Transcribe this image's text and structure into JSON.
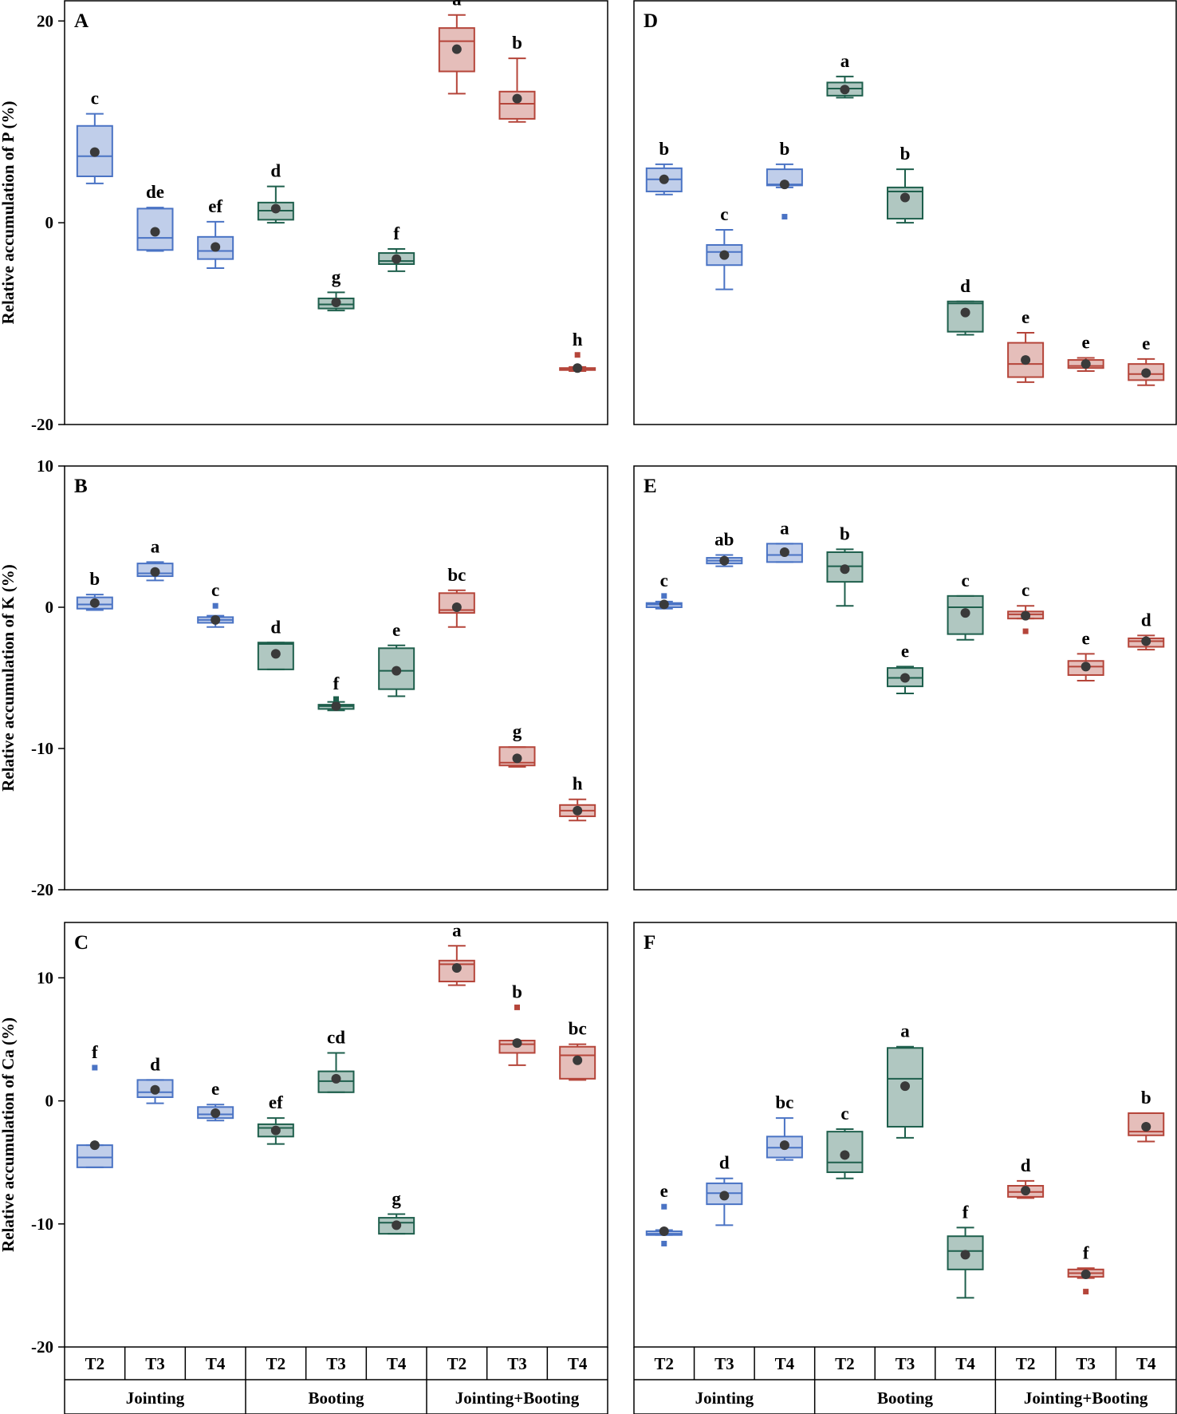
{
  "figure": {
    "colors": {
      "Jointing": "#4a73c4",
      "Booting": "#1e5f4c",
      "Jointing+Booting": "#b5453a",
      "mean": "#3a3a3a"
    },
    "group_labels": [
      "Jointing",
      "Booting",
      "Jointing+Booting"
    ],
    "treatment_labels": [
      "T2",
      "T3",
      "T4"
    ]
  },
  "chart_data": [
    {
      "type": "boxplot",
      "panel": "A",
      "ylabel": "Relative accumulation of P (%)",
      "ylim": [
        -20,
        22
      ],
      "yticks": [
        -20,
        0,
        20
      ],
      "boxes": [
        {
          "group": "Jointing",
          "treatment": "T2",
          "min": 3.9,
          "q1": 4.6,
          "median": 6.6,
          "q3": 9.6,
          "max": 10.8,
          "mean": 7.0,
          "outliers": [],
          "letter": "c"
        },
        {
          "group": "Jointing",
          "treatment": "T3",
          "min": -2.8,
          "q1": -2.7,
          "median": -1.5,
          "q3": 1.4,
          "max": 1.5,
          "mean": -0.9,
          "outliers": [],
          "letter": "de"
        },
        {
          "group": "Jointing",
          "treatment": "T4",
          "min": -4.5,
          "q1": -3.6,
          "median": -2.8,
          "q3": -1.4,
          "max": 0.1,
          "mean": -2.4,
          "outliers": [],
          "letter": "ef"
        },
        {
          "group": "Booting",
          "treatment": "T2",
          "min": 0.0,
          "q1": 0.3,
          "median": 1.2,
          "q3": 2.0,
          "max": 3.6,
          "mean": 1.4,
          "outliers": [],
          "letter": "d"
        },
        {
          "group": "Booting",
          "treatment": "T3",
          "min": -8.7,
          "q1": -8.5,
          "median": -8.1,
          "q3": -7.5,
          "max": -6.9,
          "mean": -7.9,
          "outliers": [],
          "letter": "g"
        },
        {
          "group": "Booting",
          "treatment": "T4",
          "min": -4.8,
          "q1": -4.1,
          "median": -3.8,
          "q3": -3.0,
          "max": -2.6,
          "mean": -3.6,
          "outliers": [],
          "letter": "f"
        },
        {
          "group": "Jointing+Booting",
          "treatment": "T2",
          "min": 12.8,
          "q1": 15.0,
          "median": 18.0,
          "q3": 19.3,
          "max": 20.6,
          "mean": 17.2,
          "outliers": [],
          "letter": "a"
        },
        {
          "group": "Jointing+Booting",
          "treatment": "T3",
          "min": 10.0,
          "q1": 10.3,
          "median": 11.8,
          "q3": 13.0,
          "max": 16.3,
          "mean": 12.3,
          "outliers": [],
          "letter": "b"
        },
        {
          "group": "Jointing+Booting",
          "treatment": "T4",
          "min": -14.7,
          "q1": -14.6,
          "median": -14.5,
          "q3": -14.4,
          "max": -14.3,
          "mean": -14.4,
          "outliers": [
            -13.1
          ],
          "letter": "h"
        }
      ]
    },
    {
      "type": "boxplot",
      "panel": "B",
      "ylabel": "Relative accumulation of K (%)",
      "ylim": [
        -20,
        10
      ],
      "yticks": [
        -20,
        -10,
        0,
        10
      ],
      "boxes": [
        {
          "group": "Jointing",
          "treatment": "T2",
          "min": -0.2,
          "q1": -0.1,
          "median": 0.2,
          "q3": 0.7,
          "max": 0.9,
          "mean": 0.3,
          "outliers": [],
          "letter": "b"
        },
        {
          "group": "Jointing",
          "treatment": "T3",
          "min": 1.9,
          "q1": 2.2,
          "median": 2.4,
          "q3": 3.1,
          "max": 3.2,
          "mean": 2.5,
          "outliers": [],
          "letter": "a"
        },
        {
          "group": "Jointing",
          "treatment": "T4",
          "min": -1.4,
          "q1": -1.1,
          "median": -0.9,
          "q3": -0.7,
          "max": -0.6,
          "mean": -0.9,
          "outliers": [
            0.1
          ],
          "letter": "c"
        },
        {
          "group": "Booting",
          "treatment": "T2",
          "min": -4.4,
          "q1": -4.4,
          "median": -2.6,
          "q3": -2.5,
          "max": -2.5,
          "mean": -3.3,
          "outliers": [],
          "letter": "d"
        },
        {
          "group": "Booting",
          "treatment": "T3",
          "min": -7.3,
          "q1": -7.2,
          "median": -7.0,
          "q3": -6.9,
          "max": -6.7,
          "mean": -7.0,
          "outliers": [
            -6.5
          ],
          "letter": "f"
        },
        {
          "group": "Booting",
          "treatment": "T4",
          "min": -6.3,
          "q1": -5.8,
          "median": -4.5,
          "q3": -2.9,
          "max": -2.7,
          "mean": -4.5,
          "outliers": [],
          "letter": "e"
        },
        {
          "group": "Jointing+Booting",
          "treatment": "T2",
          "min": -1.4,
          "q1": -0.4,
          "median": -0.2,
          "q3": 1.0,
          "max": 1.2,
          "mean": 0.0,
          "outliers": [],
          "letter": "bc"
        },
        {
          "group": "Jointing+Booting",
          "treatment": "T3",
          "min": -11.3,
          "q1": -11.2,
          "median": -11.0,
          "q3": -9.9,
          "max": -9.9,
          "mean": -10.7,
          "outliers": [],
          "letter": "g"
        },
        {
          "group": "Jointing+Booting",
          "treatment": "T4",
          "min": -15.1,
          "q1": -14.8,
          "median": -14.4,
          "q3": -14.0,
          "max": -13.6,
          "mean": -14.4,
          "outliers": [],
          "letter": "h"
        }
      ]
    },
    {
      "type": "boxplot",
      "panel": "C",
      "ylabel": "Relative accumulation of Ca (%)",
      "ylim": [
        -20,
        14.5
      ],
      "yticks": [
        -20,
        -10,
        0,
        10
      ],
      "boxes": [
        {
          "group": "Jointing",
          "treatment": "T2",
          "min": -5.4,
          "q1": -5.4,
          "median": -4.6,
          "q3": -3.6,
          "max": -3.6,
          "mean": -3.6,
          "outliers": [
            2.7
          ],
          "letter": "f"
        },
        {
          "group": "Jointing",
          "treatment": "T3",
          "min": -0.2,
          "q1": 0.3,
          "median": 0.7,
          "q3": 1.7,
          "max": 1.7,
          "mean": 0.9,
          "outliers": [],
          "letter": "d"
        },
        {
          "group": "Jointing",
          "treatment": "T4",
          "min": -1.6,
          "q1": -1.4,
          "median": -1.1,
          "q3": -0.5,
          "max": -0.3,
          "mean": -1.0,
          "outliers": [],
          "letter": "e"
        },
        {
          "group": "Booting",
          "treatment": "T2",
          "min": -3.5,
          "q1": -2.9,
          "median": -2.2,
          "q3": -1.9,
          "max": -1.4,
          "mean": -2.4,
          "outliers": [],
          "letter": "ef"
        },
        {
          "group": "Booting",
          "treatment": "T3",
          "min": 0.7,
          "q1": 0.7,
          "median": 1.6,
          "q3": 2.4,
          "max": 3.9,
          "mean": 1.8,
          "outliers": [],
          "letter": "cd"
        },
        {
          "group": "Booting",
          "treatment": "T4",
          "min": -10.8,
          "q1": -10.8,
          "median": -9.9,
          "q3": -9.5,
          "max": -9.2,
          "mean": -10.1,
          "outliers": [],
          "letter": "g"
        },
        {
          "group": "Jointing+Booting",
          "treatment": "T2",
          "min": 9.4,
          "q1": 9.7,
          "median": 11.1,
          "q3": 11.4,
          "max": 12.6,
          "mean": 10.8,
          "outliers": [],
          "letter": "a"
        },
        {
          "group": "Jointing+Booting",
          "treatment": "T3",
          "min": 2.9,
          "q1": 3.9,
          "median": 4.6,
          "q3": 4.9,
          "max": 4.9,
          "mean": 4.7,
          "outliers": [
            7.6
          ],
          "letter": "b"
        },
        {
          "group": "Jointing+Booting",
          "treatment": "T4",
          "min": 1.7,
          "q1": 1.8,
          "median": 3.7,
          "q3": 4.4,
          "max": 4.6,
          "mean": 3.3,
          "outliers": [],
          "letter": "bc"
        }
      ]
    },
    {
      "type": "boxplot",
      "panel": "D",
      "ylabel": "",
      "ylim": [
        -20,
        22
      ],
      "yticks": [],
      "boxes": [
        {
          "group": "Jointing",
          "treatment": "T2",
          "min": 2.8,
          "q1": 3.1,
          "median": 4.3,
          "q3": 5.4,
          "max": 5.8,
          "mean": 4.3,
          "outliers": [],
          "letter": "b"
        },
        {
          "group": "Jointing",
          "treatment": "T3",
          "min": -6.6,
          "q1": -4.2,
          "median": -2.9,
          "q3": -2.2,
          "max": -0.7,
          "mean": -3.2,
          "outliers": [],
          "letter": "c"
        },
        {
          "group": "Jointing",
          "treatment": "T4",
          "min": 3.5,
          "q1": 3.7,
          "median": 3.8,
          "q3": 5.3,
          "max": 5.8,
          "mean": 3.8,
          "outliers": [
            0.6
          ],
          "letter": "b"
        },
        {
          "group": "Booting",
          "treatment": "T2",
          "min": 12.4,
          "q1": 12.6,
          "median": 13.3,
          "q3": 13.9,
          "max": 14.5,
          "mean": 13.2,
          "outliers": [],
          "letter": "a"
        },
        {
          "group": "Booting",
          "treatment": "T3",
          "min": 0.0,
          "q1": 0.4,
          "median": 3.1,
          "q3": 3.5,
          "max": 5.3,
          "mean": 2.5,
          "outliers": [],
          "letter": "b"
        },
        {
          "group": "Booting",
          "treatment": "T4",
          "min": -11.1,
          "q1": -10.8,
          "median": -8.0,
          "q3": -7.8,
          "max": -7.8,
          "mean": -8.9,
          "outliers": [],
          "letter": "d"
        },
        {
          "group": "Jointing+Booting",
          "treatment": "T2",
          "min": -15.8,
          "q1": -15.3,
          "median": -14.0,
          "q3": -11.9,
          "max": -10.9,
          "mean": -13.6,
          "outliers": [],
          "letter": "e"
        },
        {
          "group": "Jointing+Booting",
          "treatment": "T3",
          "min": -14.7,
          "q1": -14.4,
          "median": -14.2,
          "q3": -13.6,
          "max": -13.4,
          "mean": -14.0,
          "outliers": [],
          "letter": "e"
        },
        {
          "group": "Jointing+Booting",
          "treatment": "T4",
          "min": -16.1,
          "q1": -15.6,
          "median": -15.0,
          "q3": -14.0,
          "max": -13.5,
          "mean": -14.9,
          "outliers": [],
          "letter": "e"
        }
      ]
    },
    {
      "type": "boxplot",
      "panel": "E",
      "ylabel": "",
      "ylim": [
        -20,
        10
      ],
      "yticks": [],
      "boxes": [
        {
          "group": "Jointing",
          "treatment": "T2",
          "min": -0.1,
          "q1": 0.0,
          "median": 0.2,
          "q3": 0.3,
          "max": 0.4,
          "mean": 0.2,
          "outliers": [
            0.8
          ],
          "letter": "c"
        },
        {
          "group": "Jointing",
          "treatment": "T3",
          "min": 2.9,
          "q1": 3.1,
          "median": 3.3,
          "q3": 3.5,
          "max": 3.7,
          "mean": 3.3,
          "outliers": [],
          "letter": "ab"
        },
        {
          "group": "Jointing",
          "treatment": "T4",
          "min": 3.2,
          "q1": 3.2,
          "median": 3.7,
          "q3": 4.5,
          "max": 4.5,
          "mean": 3.9,
          "outliers": [],
          "letter": "a"
        },
        {
          "group": "Booting",
          "treatment": "T2",
          "min": 0.1,
          "q1": 1.8,
          "median": 2.9,
          "q3": 3.9,
          "max": 4.1,
          "mean": 2.7,
          "outliers": [],
          "letter": "b"
        },
        {
          "group": "Booting",
          "treatment": "T3",
          "min": -6.1,
          "q1": -5.6,
          "median": -5.0,
          "q3": -4.3,
          "max": -4.2,
          "mean": -5.0,
          "outliers": [],
          "letter": "e"
        },
        {
          "group": "Booting",
          "treatment": "T4",
          "min": -2.3,
          "q1": -1.9,
          "median": 0.0,
          "q3": 0.8,
          "max": 0.8,
          "mean": -0.4,
          "outliers": [],
          "letter": "c"
        },
        {
          "group": "Jointing+Booting",
          "treatment": "T2",
          "min": -0.8,
          "q1": -0.8,
          "median": -0.5,
          "q3": -0.3,
          "max": 0.1,
          "mean": -0.6,
          "outliers": [
            -1.7
          ],
          "letter": "c"
        },
        {
          "group": "Jointing+Booting",
          "treatment": "T3",
          "min": -5.2,
          "q1": -4.8,
          "median": -4.2,
          "q3": -3.8,
          "max": -3.3,
          "mean": -4.2,
          "outliers": [],
          "letter": "e"
        },
        {
          "group": "Jointing+Booting",
          "treatment": "T4",
          "min": -3.0,
          "q1": -2.8,
          "median": -2.4,
          "q3": -2.2,
          "max": -2.0,
          "mean": -2.4,
          "outliers": [],
          "letter": "d"
        }
      ]
    },
    {
      "type": "boxplot",
      "panel": "F",
      "ylabel": "",
      "ylim": [
        -20,
        14.5
      ],
      "yticks": [],
      "boxes": [
        {
          "group": "Jointing",
          "treatment": "T2",
          "min": -10.9,
          "q1": -10.9,
          "median": -10.8,
          "q3": -10.6,
          "max": -10.5,
          "mean": -10.6,
          "outliers": [
            -8.6,
            -11.6
          ],
          "letter": "e"
        },
        {
          "group": "Jointing",
          "treatment": "T3",
          "min": -10.1,
          "q1": -8.4,
          "median": -7.5,
          "q3": -6.7,
          "max": -6.3,
          "mean": -7.7,
          "outliers": [],
          "letter": "d"
        },
        {
          "group": "Jointing",
          "treatment": "T4",
          "min": -4.8,
          "q1": -4.6,
          "median": -3.8,
          "q3": -2.9,
          "max": -1.4,
          "mean": -3.6,
          "outliers": [],
          "letter": "bc"
        },
        {
          "group": "Booting",
          "treatment": "T2",
          "min": -6.3,
          "q1": -5.8,
          "median": -5.0,
          "q3": -2.5,
          "max": -2.3,
          "mean": -4.4,
          "outliers": [],
          "letter": "c"
        },
        {
          "group": "Booting",
          "treatment": "T3",
          "min": -3.0,
          "q1": -2.1,
          "median": 1.8,
          "q3": 4.3,
          "max": 4.4,
          "mean": 1.2,
          "outliers": [],
          "letter": "a"
        },
        {
          "group": "Booting",
          "treatment": "T4",
          "min": -16.0,
          "q1": -13.7,
          "median": -12.2,
          "q3": -11.0,
          "max": -10.3,
          "mean": -12.5,
          "outliers": [],
          "letter": "f"
        },
        {
          "group": "Jointing+Booting",
          "treatment": "T2",
          "min": -7.9,
          "q1": -7.8,
          "median": -7.4,
          "q3": -6.9,
          "max": -6.5,
          "mean": -7.3,
          "outliers": [],
          "letter": "d"
        },
        {
          "group": "Jointing+Booting",
          "treatment": "T3",
          "min": -14.4,
          "q1": -14.3,
          "median": -14.0,
          "q3": -13.7,
          "max": -13.6,
          "mean": -14.1,
          "outliers": [
            -15.5
          ],
          "letter": "f"
        },
        {
          "group": "Jointing+Booting",
          "treatment": "T4",
          "min": -3.3,
          "q1": -2.8,
          "median": -2.5,
          "q3": -1.0,
          "max": -1.0,
          "mean": -2.1,
          "outliers": [],
          "letter": "b"
        }
      ]
    }
  ]
}
